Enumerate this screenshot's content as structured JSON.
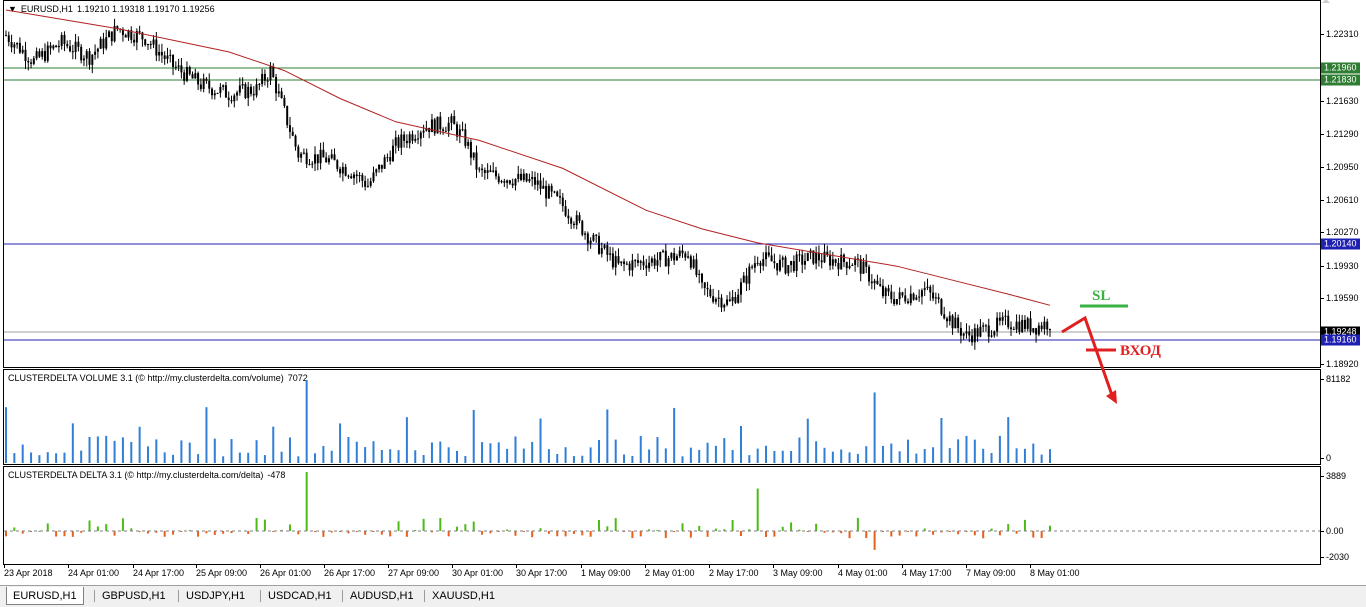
{
  "main_title": {
    "symbol": "EURUSD,H1",
    "ohlc": "1.19210 1.19318 1.19170 1.19256"
  },
  "volume_title": {
    "name": "CLUSTERDELTA VOLUME 3.1 (© http://my.clusterdelta.com/volume)",
    "value": "7072"
  },
  "delta_title": {
    "name": "CLUSTERDELTA DELTA 3.1 (© http://my.clusterdelta.com/delta)",
    "value": "-478"
  },
  "price_ticks": [
    "1.22310",
    "1.21630",
    "1.21290",
    "1.20950",
    "1.20610",
    "1.20270",
    "1.19930",
    "1.19590",
    "1.18920"
  ],
  "levels": [
    {
      "label": "1.21960",
      "color": "#2e7d32"
    },
    {
      "label": "1.21830",
      "color": "#2e7d32"
    },
    {
      "label": "1.20140",
      "color": "#1f1fb4"
    },
    {
      "label": "1.19248",
      "color": "#000000"
    },
    {
      "label": "1.19160",
      "color": "#1f1fb4"
    }
  ],
  "volume_ticks": [
    "81182",
    "0"
  ],
  "delta_ticks": [
    "3889",
    "0.00",
    "-2030"
  ],
  "time_labels": [
    "23 Apr 2018",
    "24 Apr 01:00",
    "24 Apr 17:00",
    "25 Apr 09:00",
    "26 Apr 01:00",
    "26 Apr 17:00",
    "27 Apr 09:00",
    "30 Apr 01:00",
    "30 Apr 17:00",
    "1 May 09:00",
    "2 May 01:00",
    "2 May 17:00",
    "3 May 09:00",
    "4 May 01:00",
    "4 May 17:00",
    "7 May 09:00",
    "8 May 01:00"
  ],
  "annotations": {
    "sl": "SL",
    "entry": "ВХОД"
  },
  "tabs": [
    "EURUSD,H1",
    "GBPUSD,H1",
    "USDJPY,H1",
    "USDCAD,H1",
    "AUDUSD,H1",
    "XAUUSD,H1"
  ],
  "chart_data": {
    "type": "candlestick",
    "symbol": "EURUSD",
    "timeframe": "H1",
    "ylim": [
      1.188,
      1.226
    ],
    "close_points": [
      [
        0,
        1.2233
      ],
      [
        10,
        1.2205
      ],
      [
        20,
        1.2225
      ],
      [
        30,
        1.221
      ],
      [
        40,
        1.224
      ],
      [
        50,
        1.223
      ],
      [
        60,
        1.22
      ],
      [
        70,
        1.218
      ],
      [
        80,
        1.217
      ],
      [
        90,
        1.2175
      ],
      [
        95,
        1.2195
      ],
      [
        100,
        1.215
      ],
      [
        105,
        1.2105
      ],
      [
        115,
        1.21
      ],
      [
        125,
        1.2085
      ],
      [
        130,
        1.2072
      ],
      [
        140,
        1.2115
      ],
      [
        150,
        1.2135
      ],
      [
        160,
        1.2138
      ],
      [
        165,
        1.212
      ],
      [
        170,
        1.2085
      ],
      [
        180,
        1.208
      ],
      [
        190,
        1.2075
      ],
      [
        200,
        1.205
      ],
      [
        210,
        1.2015
      ],
      [
        220,
        1.1985
      ],
      [
        230,
        1.199
      ],
      [
        240,
        1.1995
      ],
      [
        245,
        1.2
      ],
      [
        250,
        1.196
      ],
      [
        260,
        1.1945
      ],
      [
        265,
        1.1968
      ],
      [
        270,
        1.1995
      ],
      [
        280,
        1.1985
      ],
      [
        290,
        1.1995
      ],
      [
        300,
        1.199
      ],
      [
        305,
        1.199
      ],
      [
        310,
        1.1975
      ],
      [
        315,
        1.1955
      ],
      [
        320,
        1.195
      ],
      [
        330,
        1.196
      ],
      [
        335,
        1.1945
      ],
      [
        340,
        1.1925
      ],
      [
        345,
        1.191
      ],
      [
        350,
        1.1915
      ],
      [
        360,
        1.1925
      ],
      [
        370,
        1.192
      ],
      [
        375,
        1.1925
      ]
    ],
    "ma_points": [
      [
        0,
        1.226
      ],
      [
        40,
        1.224
      ],
      [
        80,
        1.2215
      ],
      [
        100,
        1.2195
      ],
      [
        120,
        1.2165
      ],
      [
        140,
        1.214
      ],
      [
        170,
        1.212
      ],
      [
        200,
        1.209
      ],
      [
        230,
        1.2045
      ],
      [
        250,
        1.2025
      ],
      [
        270,
        1.201
      ],
      [
        300,
        1.1995
      ],
      [
        320,
        1.1985
      ],
      [
        340,
        1.197
      ],
      [
        360,
        1.1955
      ],
      [
        375,
        1.1943
      ]
    ],
    "volume_max": 81182,
    "delta_range": [
      -2030,
      3889
    ]
  }
}
